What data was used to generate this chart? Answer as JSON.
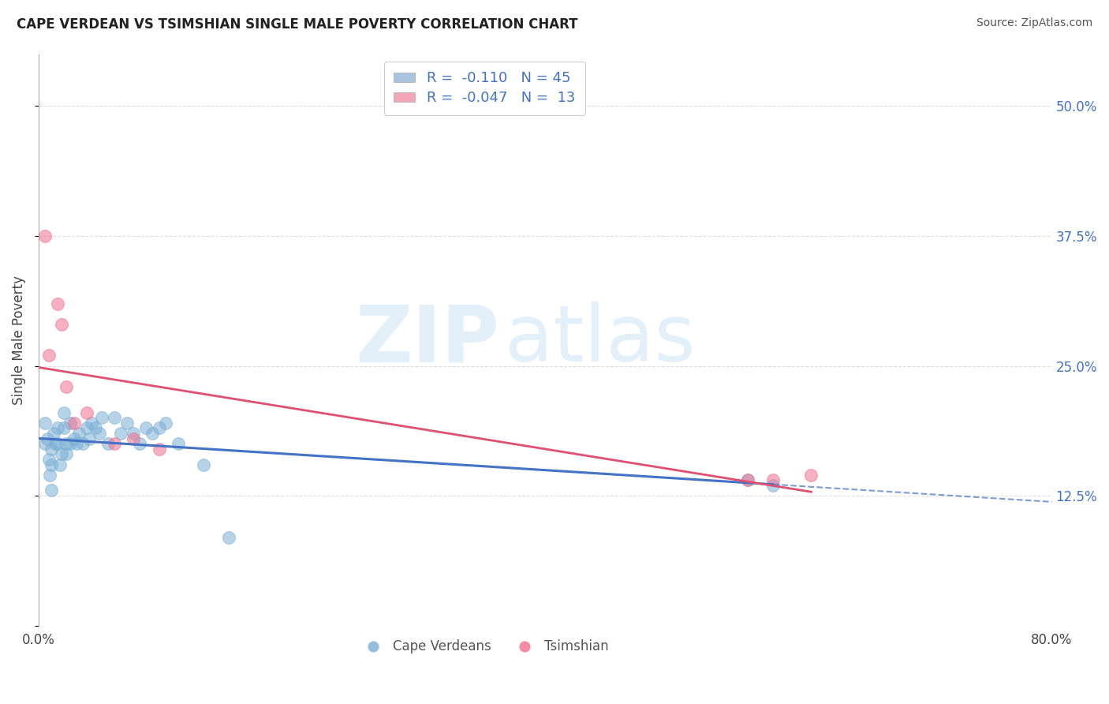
{
  "title": "CAPE VERDEAN VS TSIMSHIAN SINGLE MALE POVERTY CORRELATION CHART",
  "source": "Source: ZipAtlas.com",
  "ylabel": "Single Male Poverty",
  "xlim": [
    0.0,
    0.8
  ],
  "ylim": [
    0.0,
    0.55
  ],
  "yticks": [
    0.0,
    0.125,
    0.25,
    0.375,
    0.5
  ],
  "ytick_labels": [
    "",
    "12.5%",
    "25.0%",
    "37.5%",
    "50.0%"
  ],
  "xticks": [
    0.0,
    0.2,
    0.4,
    0.6,
    0.8
  ],
  "xtick_labels": [
    "0.0%",
    "",
    "",
    "",
    "80.0%"
  ],
  "watermark_zip": "ZIP",
  "watermark_atlas": "atlas",
  "legend_entries": [
    {
      "label": "R =  -0.110   N = 45",
      "color": "#aac4e0"
    },
    {
      "label": "R =  -0.047   N =  13",
      "color": "#f4a7b9"
    }
  ],
  "cape_verdean_x": [
    0.005,
    0.005,
    0.007,
    0.008,
    0.009,
    0.01,
    0.01,
    0.01,
    0.012,
    0.013,
    0.015,
    0.015,
    0.017,
    0.018,
    0.02,
    0.02,
    0.022,
    0.022,
    0.025,
    0.025,
    0.028,
    0.03,
    0.032,
    0.035,
    0.038,
    0.04,
    0.042,
    0.045,
    0.048,
    0.05,
    0.055,
    0.06,
    0.065,
    0.07,
    0.075,
    0.08,
    0.085,
    0.09,
    0.095,
    0.1,
    0.11,
    0.13,
    0.15,
    0.56,
    0.58
  ],
  "cape_verdean_y": [
    0.175,
    0.195,
    0.18,
    0.16,
    0.145,
    0.13,
    0.155,
    0.17,
    0.185,
    0.175,
    0.175,
    0.19,
    0.155,
    0.165,
    0.19,
    0.205,
    0.175,
    0.165,
    0.195,
    0.175,
    0.18,
    0.175,
    0.185,
    0.175,
    0.19,
    0.18,
    0.195,
    0.19,
    0.185,
    0.2,
    0.175,
    0.2,
    0.185,
    0.195,
    0.185,
    0.175,
    0.19,
    0.185,
    0.19,
    0.195,
    0.175,
    0.155,
    0.085,
    0.14,
    0.135
  ],
  "tsimshian_x": [
    0.005,
    0.008,
    0.015,
    0.018,
    0.022,
    0.028,
    0.038,
    0.06,
    0.075,
    0.095,
    0.56,
    0.58,
    0.61
  ],
  "tsimshian_y": [
    0.375,
    0.26,
    0.31,
    0.29,
    0.23,
    0.195,
    0.205,
    0.175,
    0.18,
    0.17,
    0.14,
    0.14,
    0.145
  ],
  "cv_color": "#7bafd4",
  "ts_color": "#f07090",
  "cv_line_color": "#4472c4",
  "ts_line_color": "#e05070",
  "background_color": "#ffffff",
  "grid_color": "#d8d8d8"
}
